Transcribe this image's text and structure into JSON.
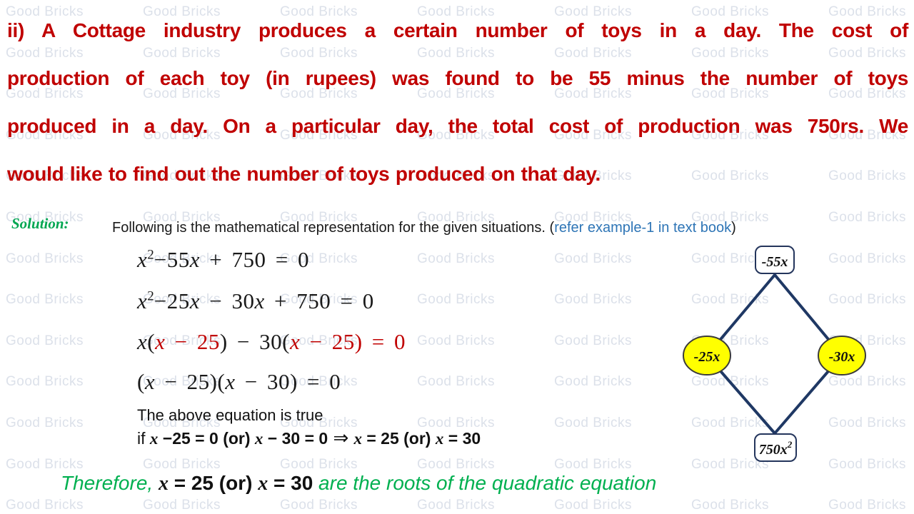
{
  "watermark": {
    "text": "Good Bricks",
    "color": "#DCE1EA"
  },
  "problem": {
    "color": "#C00000",
    "lines": [
      "ii) A Cottage industry produces a certain number of toys in a day. The cost of",
      "production of each toy (in rupees) was found to be 55 minus the number of toys",
      "produced in a day. On a particular day, the total cost of production was 750rs. We",
      "would like to find out the number of toys produced on that day."
    ]
  },
  "solution": {
    "label": "Solution:",
    "label_color": "#00A651",
    "intro": "Following is the mathematical representation for the given situations.  ",
    "paren_open": "(",
    "link_text": "refer example-1 in text book",
    "link_color": "#2E75B6",
    "paren_close": ")"
  },
  "equations": {
    "eq1": [
      {
        "text": "x^2−55x + 750 = 0"
      }
    ],
    "eq2": [
      {
        "text": "x^2−25x − 30x + 750 = 0"
      }
    ],
    "eq3": [
      {
        "text": "x("
      },
      {
        "text": "x − 25",
        "cls": "red"
      },
      {
        "text": ") − 30("
      },
      {
        "text": "x − 25) = 0",
        "cls": "red"
      }
    ],
    "eq4": [
      {
        "text": "(x − 25)(x − 30) = 0"
      }
    ],
    "red_color": "#C00000"
  },
  "explanation": {
    "line1": "The above equation is true",
    "line2": [
      {
        "text": "if "
      },
      {
        "text": "x −25 = 0 (or) x − 30 = 0",
        "cls": "b"
      },
      {
        "text": "  ⇒  ",
        "cls": "arrow"
      },
      {
        "text": "x = 25 (or) x = 30",
        "cls": "b"
      }
    ]
  },
  "conclusion": {
    "parts": [
      {
        "text": "Therefore, ",
        "cls": "green"
      },
      {
        "text": "x = 25 (or) x = 30",
        "cls": "dark"
      },
      {
        "text": " are the roots of the quadratic equation",
        "cls": "green"
      }
    ],
    "green_color": "#00B050"
  },
  "diagram": {
    "top_node": {
      "label": "-55x"
    },
    "left_node": {
      "label": "-25x"
    },
    "right_node": {
      "label": "-30x"
    },
    "bottom_node": {
      "base": "750x",
      "sup": "2"
    },
    "colors": {
      "line": "#1F3864",
      "ellipse_fill": "#FFFF00",
      "box_fill": "#FFFFFF"
    }
  }
}
